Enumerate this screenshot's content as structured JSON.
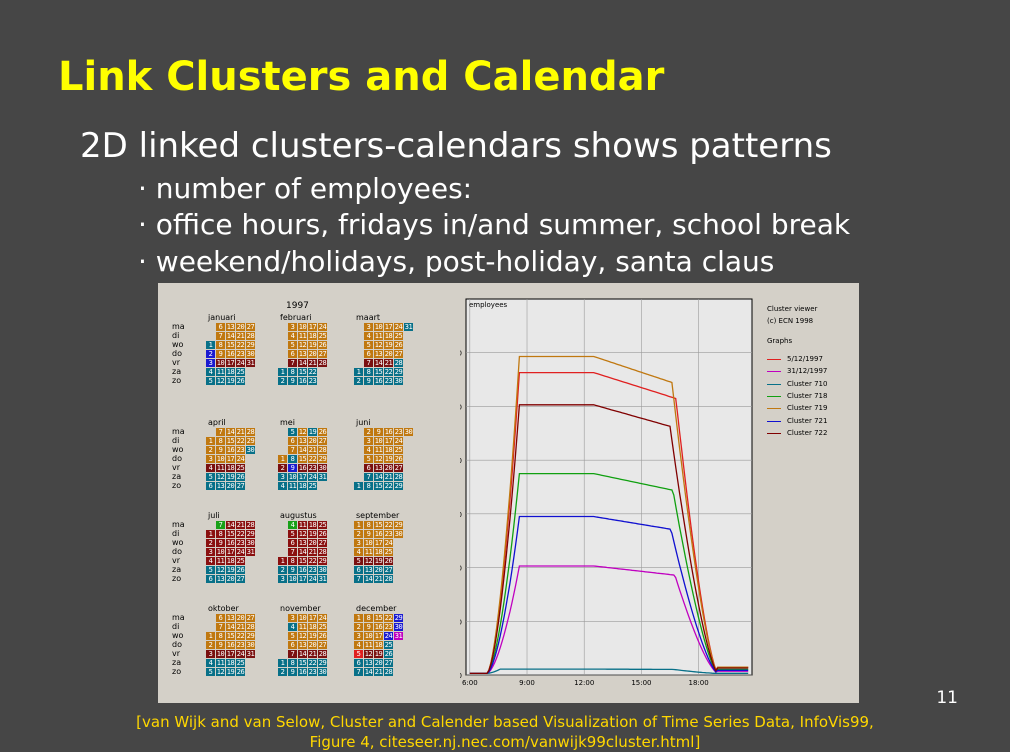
{
  "slide": {
    "title": "Link Clusters and Calendar",
    "subtitle": "2D linked clusters-calendars shows patterns",
    "bullets": [
      "· number of employees:",
      "· office hours, fridays in/and summer, school break",
      "· weekend/holidays, post-holiday, santa claus"
    ],
    "page_number": "11",
    "citation_line1": "[van Wijk and van Selow, Cluster and Calender based Visualization of Time Series Data, InfoVis99,",
    "citation_line2": "Figure 4, citeseer.nj.nec.com/vanwijk99cluster.html]"
  },
  "calendar": {
    "year": "1997",
    "day_labels": [
      "ma",
      "di",
      "wo",
      "do",
      "vr",
      "za",
      "zo"
    ],
    "months": [
      "januari",
      "februari",
      "maart",
      "april",
      "mei",
      "juni",
      "juli",
      "augustus",
      "september",
      "oktober",
      "november",
      "december"
    ],
    "colors": {
      "workday": "#c07810",
      "friday": "#7a1010",
      "weekend": "#087088",
      "post_holiday": "#1a1ad0",
      "summer": "#8a1010",
      "santa": "#c000c0",
      "special": "#18a018",
      "red_day": "#e02020"
    }
  },
  "chart_data": {
    "type": "line",
    "title": "employees",
    "x": [
      "6:00",
      "9:00",
      "12:00",
      "15:00",
      "18:00"
    ],
    "xlabel": "",
    "ylabel": "",
    "ylim": [
      0,
      700
    ],
    "yticks": [
      0,
      100,
      200,
      300,
      400,
      500,
      600
    ],
    "grid": true,
    "legend_position": "right",
    "panel_title_1": "Cluster viewer",
    "panel_title_2": "(c) ECN 1998",
    "graphs_label": "Graphs",
    "series": [
      {
        "name": "5/12/1997",
        "color": "#e02020",
        "peak": 560
      },
      {
        "name": "31/12/1997",
        "color": "#c000c0",
        "peak": 200
      },
      {
        "name": "Cluster 710",
        "color": "#087088",
        "peak": 8
      },
      {
        "name": "Cluster 718",
        "color": "#10a010",
        "peak": 372
      },
      {
        "name": "Cluster 719",
        "color": "#c07810",
        "peak": 590
      },
      {
        "name": "Cluster 721",
        "color": "#1010d0",
        "peak": 292
      },
      {
        "name": "Cluster 722",
        "color": "#800000",
        "peak": 500
      }
    ]
  }
}
